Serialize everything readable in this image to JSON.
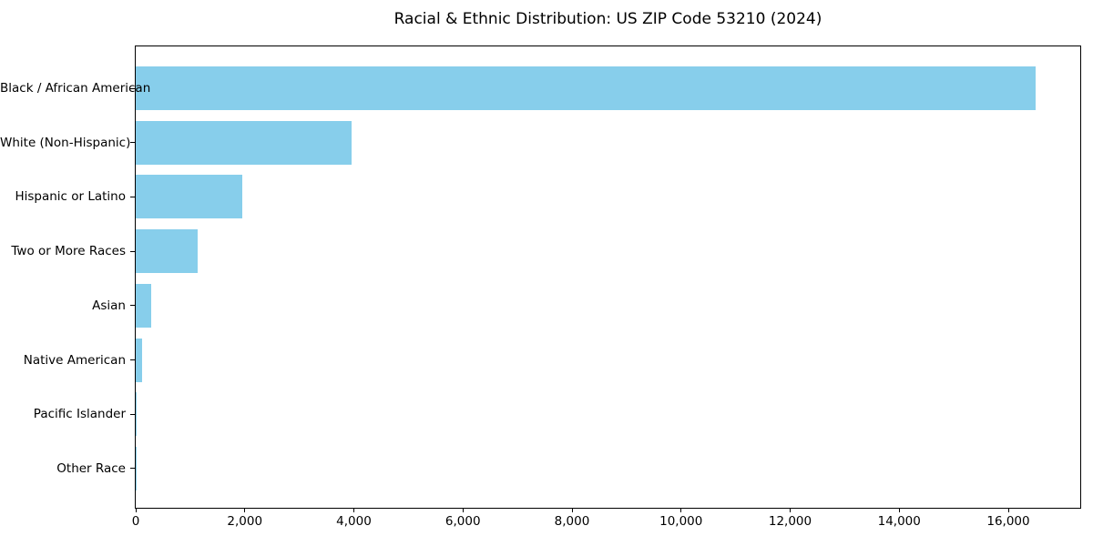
{
  "chart_data": {
    "type": "bar",
    "orientation": "horizontal",
    "title": "Racial & Ethnic Distribution: US ZIP Code 53210 (2024)",
    "categories": [
      "Black / African American",
      "White (Non-Hispanic)",
      "Hispanic or Latino",
      "Two or More Races",
      "Asian",
      "Native American",
      "Pacific Islander",
      "Other Race"
    ],
    "values": [
      16500,
      3950,
      1950,
      1140,
      290,
      125,
      15,
      10
    ],
    "xlabel": "",
    "ylabel": "",
    "xlim": [
      0,
      17335
    ],
    "x_ticks": [
      0,
      2000,
      4000,
      6000,
      8000,
      10000,
      12000,
      14000,
      16000
    ],
    "x_tick_labels": [
      "0",
      "2,000",
      "4,000",
      "6,000",
      "8,000",
      "10,000",
      "12,000",
      "14,000",
      "16,000"
    ],
    "grid": false,
    "legend": null,
    "bar_color": "#87CEEB",
    "axis_color": "#000000",
    "background_color": "#ffffff"
  }
}
